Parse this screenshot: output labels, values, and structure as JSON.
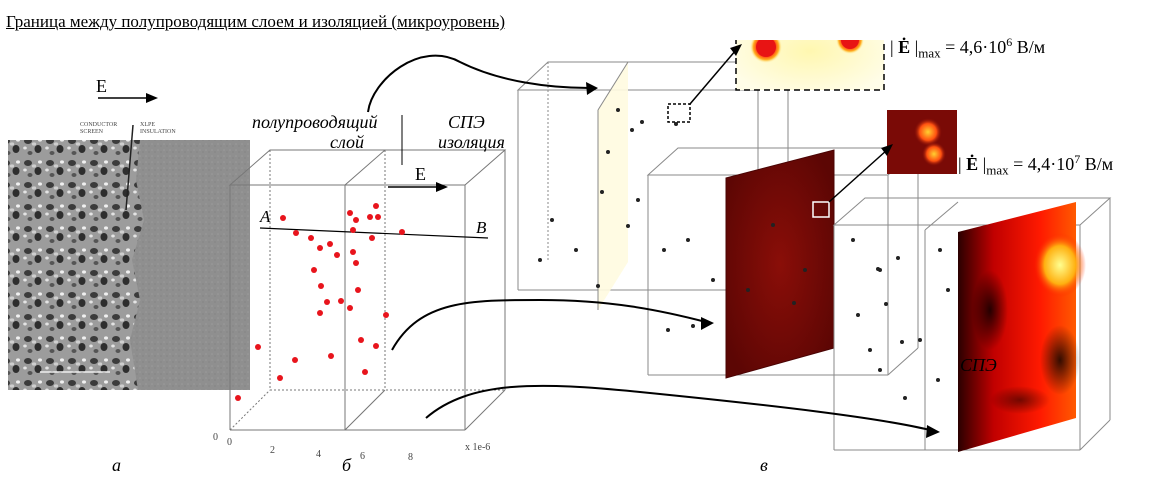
{
  "title": "Граница между полупроводящим слоем и изоляцией (микроуровень)",
  "micrograph": {
    "field_label": "E",
    "conductor_label_line1": "CONDUCTOR",
    "conductor_label_line2": "SCREEN",
    "insulation_label_line1": "XLPE",
    "insulation_label_line2": "INSULATION"
  },
  "model": {
    "semicond_label_line1": "полупроводящий",
    "semicond_label_line2": "слой",
    "insulation_label_line1": "СПЭ",
    "insulation_label_line2": "изоляция",
    "field_label": "E",
    "point_a": "A",
    "point_b": "B",
    "x_ticks": [
      "0",
      "2",
      "4",
      "6",
      "8"
    ],
    "x_multiplier": "x 1e-6"
  },
  "formula1": {
    "prefix": "| ",
    "symbol": "Ė",
    "bar": " |",
    "sub": "max",
    "value": " = 4,6·10",
    "exp": "6",
    "unit": " В/м"
  },
  "formula2": {
    "prefix": "| ",
    "symbol": "Ė",
    "bar": " |",
    "sub": "max",
    "value": " = 4,4·10",
    "exp": "7",
    "unit": " В/м"
  },
  "spe_label": "СПЭ",
  "panel_labels": {
    "a": "а",
    "b": "б",
    "c": "в"
  },
  "colors": {
    "particle_red": "#e8141c",
    "field_dark": "#6e0a08",
    "field_bright": "#ff2200",
    "field_glow": "#fff9c0"
  }
}
